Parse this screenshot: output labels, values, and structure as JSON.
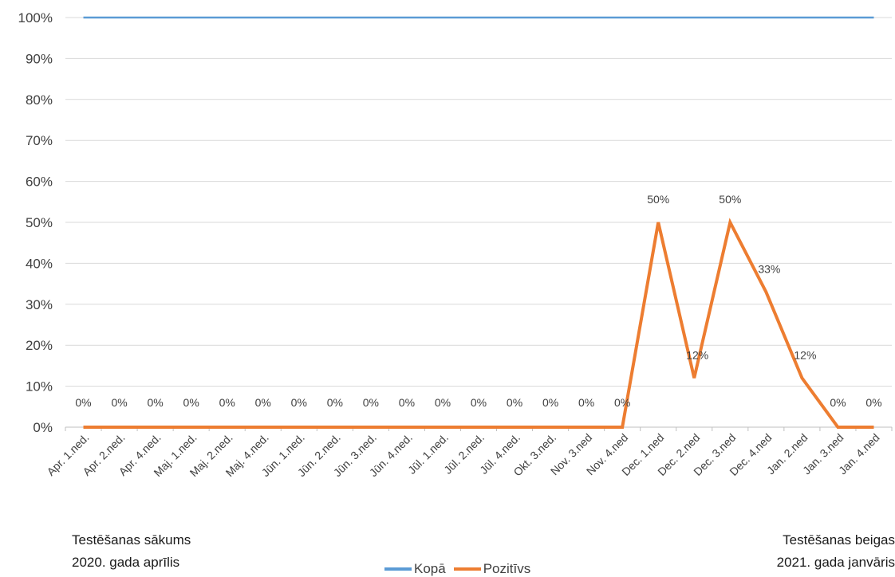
{
  "chart_data": {
    "type": "line",
    "categories": [
      "Apr. 1.ned.",
      "Apr. 2.ned.",
      "Apr. 4.ned.",
      "Maj. 1.ned.",
      "Maj. 2.ned.",
      "Maj. 4.ned.",
      "Jūn. 1.ned.",
      "Jūn. 2.ned.",
      "Jūn. 3.ned.",
      "Jūn. 4.ned.",
      "Jūl. 1.ned.",
      "Jūl. 2.ned.",
      "Jūl. 4.ned.",
      "Okt. 3.ned.",
      "Nov. 3.ned",
      "Nov. 4.ned",
      "Dec. 1.ned",
      "Dec. 2.ned",
      "Dec. 3.ned",
      "Dec. 4.ned",
      "Jan. 2.ned",
      "Jan. 3.ned",
      "Jan. 4.ned"
    ],
    "yticks": [
      "0%",
      "10%",
      "20%",
      "30%",
      "40%",
      "50%",
      "60%",
      "70%",
      "80%",
      "90%",
      "100%"
    ],
    "ylim": [
      0,
      100
    ],
    "series": [
      {
        "name": "Kopā",
        "color": "#5b9bd5",
        "values": [
          100,
          100,
          100,
          100,
          100,
          100,
          100,
          100,
          100,
          100,
          100,
          100,
          100,
          100,
          100,
          100,
          100,
          100,
          100,
          100,
          100,
          100,
          100
        ]
      },
      {
        "name": "Pozitīvs",
        "color": "#ed7d31",
        "values": [
          0,
          0,
          0,
          0,
          0,
          0,
          0,
          0,
          0,
          0,
          0,
          0,
          0,
          0,
          0,
          0,
          50,
          12,
          50,
          33,
          12,
          0,
          0
        ],
        "labels": [
          "0%",
          "0%",
          "0%",
          "0%",
          "0%",
          "0%",
          "0%",
          "0%",
          "0%",
          "0%",
          "0%",
          "0%",
          "0%",
          "0%",
          "0%",
          "0%",
          "50%",
          "12%",
          "50%",
          "33%",
          "12%",
          "0%",
          "0%"
        ]
      }
    ],
    "grid": true,
    "legend": "bottom"
  },
  "notes": {
    "start_line1": "Testēšanas sākums",
    "start_line2": "2020. gada aprīlis",
    "end_line1": "Testēšanas beigas",
    "end_line2": "2021. gada janvāris"
  }
}
